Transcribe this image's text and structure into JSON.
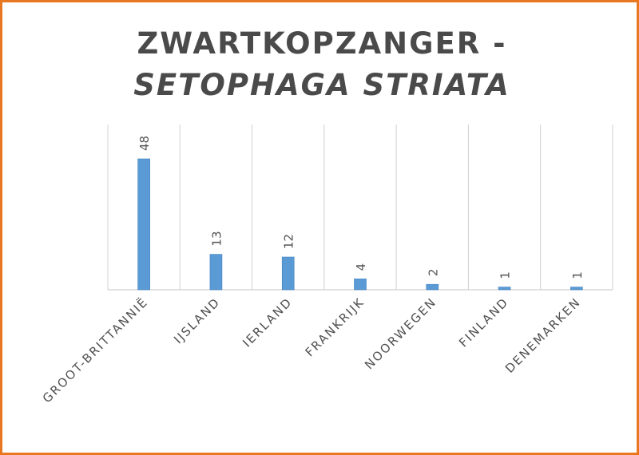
{
  "chart_data": {
    "type": "bar",
    "title": "ZWARTKOPZANGER -",
    "subtitle": "SETOPHAGA STRIATA",
    "categories": [
      "GROOT-BRITTANNIË",
      "IJSLAND",
      "IERLAND",
      "FRANKRIJK",
      "NOORWEGEN",
      "FINLAND",
      "DENEMARKEN"
    ],
    "series": [
      {
        "values": [
          48,
          13,
          12,
          4,
          2,
          1,
          1
        ]
      }
    ],
    "data_labels": [
      "48",
      "13",
      "12",
      "4",
      "2",
      "1",
      "1"
    ],
    "xlabel": "",
    "ylabel": "",
    "ylim": [
      0,
      60
    ],
    "grid": "vertical",
    "legend": "none",
    "colors": {
      "bar": "#5b9bd5",
      "bar_edge": "#3f7fbf",
      "grid": "#d0d0d0",
      "frame": "#e87722",
      "text": "#4a4a4a"
    }
  }
}
